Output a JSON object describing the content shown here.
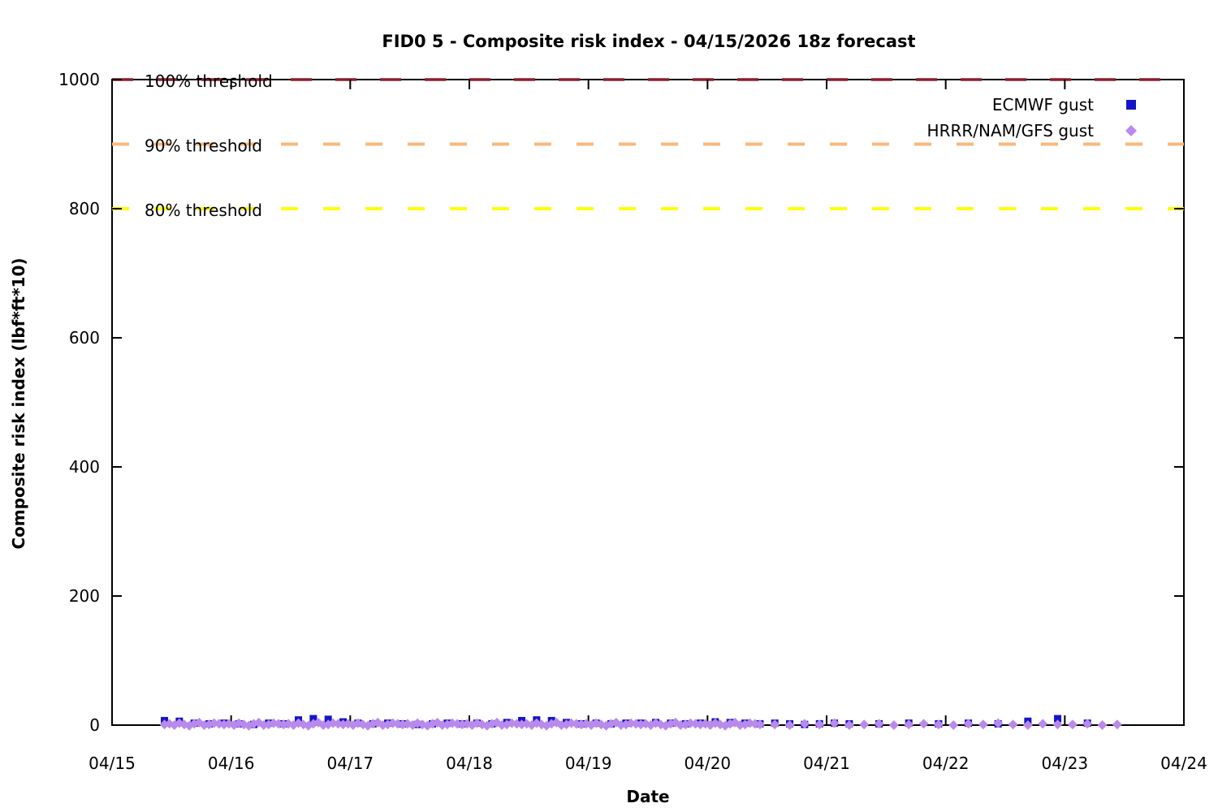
{
  "chart_data": {
    "type": "scatter",
    "title": "FID0 5 - Composite risk index - 04/15/2026 18z forecast",
    "xlabel": "Date",
    "ylabel": "Composite risk index (lbf*ft*10)",
    "x_tick_labels": [
      "04/15",
      "04/16",
      "04/17",
      "04/18",
      "04/19",
      "04/20",
      "04/21",
      "04/22",
      "04/23",
      "04/24"
    ],
    "y_ticks": [
      0,
      200,
      400,
      600,
      800,
      1000
    ],
    "xlim_days": [
      0,
      9
    ],
    "ylim": [
      0,
      1000
    ],
    "grid": false,
    "legend_position": "top-right",
    "axis_color": "#000000",
    "thresholds": [
      {
        "label": "100% threshold",
        "value": 1000,
        "color": "#8b1e2d",
        "dash": "26 29",
        "width": 3.5
      },
      {
        "label": "90% threshold",
        "value": 900,
        "color": "#f8b87c",
        "dash": "21 31",
        "width": 4
      },
      {
        "label": "80% threshold",
        "value": 800,
        "color": "#ffff00",
        "dash": "21 31",
        "width": 4
      }
    ],
    "series": [
      {
        "name": "ECMWF gust",
        "marker": "square",
        "color": "#1515c8",
        "size": 9,
        "segments": [
          {
            "start_day": 0.44,
            "step_days": 0.125,
            "values": [
              7,
              6,
              3,
              2,
              3,
              2,
              1,
              3,
              2,
              8,
              10,
              9,
              5,
              3,
              2,
              3,
              2,
              1,
              2,
              3,
              2,
              3,
              2,
              4,
              7,
              8,
              7,
              4,
              2,
              3,
              2,
              3,
              3,
              4,
              3,
              2,
              3,
              5,
              4,
              3,
              2,
              3,
              2,
              1,
              2,
              3,
              2
            ]
          },
          {
            "start_day": 6.44,
            "step_days": 0.25,
            "values": [
              2,
              3,
              2,
              3,
              2,
              6,
              10,
              3
            ]
          }
        ]
      },
      {
        "name": "HRRR/NAM/GFS gust",
        "marker": "diamond",
        "color": "#b98aec",
        "size": 12,
        "segments": [
          {
            "start_day": 0.44,
            "step_days": 0.0416667,
            "values": [
              1,
              2,
              0,
              3,
              1,
              -1,
              2,
              4,
              0,
              1,
              3,
              2,
              1,
              2,
              0,
              3,
              1,
              -1,
              2,
              4,
              0,
              1,
              3,
              2,
              1,
              2,
              0,
              3,
              1,
              -1,
              2,
              4,
              0,
              1,
              3,
              2,
              1,
              2,
              0,
              3,
              1,
              -1,
              2,
              4,
              0,
              1,
              3,
              2,
              1,
              2,
              0,
              3,
              1,
              -1,
              2,
              4,
              0,
              1,
              3,
              2,
              1,
              2,
              0,
              3,
              1,
              -1,
              2,
              4,
              0,
              1,
              3,
              2,
              1,
              2,
              0,
              3,
              1,
              -1,
              2,
              4,
              0,
              1,
              3,
              2,
              1,
              2,
              0,
              3,
              1,
              -1,
              2,
              4,
              0,
              1,
              3,
              2,
              1,
              2,
              0,
              3,
              1,
              -1,
              2,
              4,
              0,
              1,
              3,
              2,
              1,
              2,
              0,
              3,
              1,
              -1,
              2,
              4,
              0,
              1,
              3,
              2,
              1
            ]
          },
          {
            "start_day": 5.565,
            "step_days": 0.125,
            "values": [
              1,
              0,
              2,
              1,
              3,
              0,
              1,
              2,
              0,
              1,
              2,
              1,
              0,
              2,
              1,
              3,
              1,
              0,
              2,
              1,
              1,
              2,
              0,
              1
            ]
          }
        ]
      }
    ]
  }
}
